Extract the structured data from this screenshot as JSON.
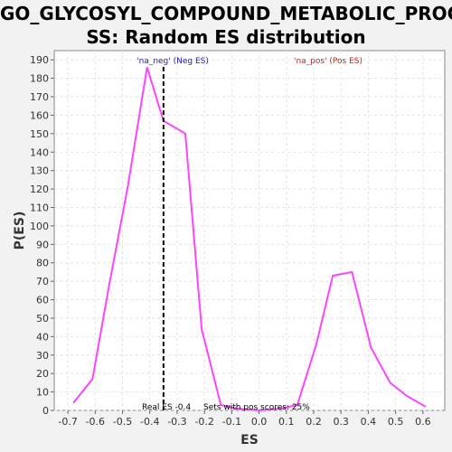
{
  "chart_data": {
    "type": "line",
    "title_line1": "GO_GLYCOSYL_COMPOUND_METABOLIC_PROCE",
    "title_line2": "SS: Random ES distribution",
    "xlabel": "ES",
    "ylabel": "P(ES)",
    "xlim": [
      -0.75,
      0.68
    ],
    "ylim": [
      0,
      195
    ],
    "xticks": [
      -0.7,
      -0.6,
      -0.5,
      -0.4,
      -0.3,
      -0.2,
      -0.1,
      0.0,
      0.1,
      0.2,
      0.3,
      0.4,
      0.5,
      0.6
    ],
    "xtick_labels": [
      "-0.7",
      "-0.6",
      "-0.5",
      "-0.4",
      "-0.3",
      "-0.2",
      "-0.1",
      "0.0",
      "0.1",
      "0.2",
      "0.3",
      "0.4",
      "0.5",
      "0.6"
    ],
    "yticks": [
      0,
      10,
      20,
      30,
      40,
      50,
      60,
      70,
      80,
      90,
      100,
      110,
      120,
      130,
      140,
      150,
      160,
      170,
      180,
      190
    ],
    "grid": true,
    "series": [
      {
        "color": "#ff44ff",
        "x": [
          -0.68,
          -0.61,
          -0.55,
          -0.48,
          -0.41,
          -0.35,
          -0.27,
          -0.21,
          -0.14,
          -0.08,
          0.0,
          0.08,
          0.14,
          0.21,
          0.27,
          0.34,
          0.41,
          0.48,
          0.54,
          0.61
        ],
        "y": [
          4,
          17,
          67,
          122,
          186,
          157,
          150,
          44,
          3,
          1,
          0,
          1,
          3,
          36,
          73,
          75,
          34,
          15,
          8,
          2
        ]
      }
    ],
    "real_es": -0.35,
    "annotations": {
      "neg_label": "'na_neg' (Neg ES)",
      "neg_color": "#2020cc",
      "pos_label": "'na_pos' (Pos ES)",
      "pos_color": "#cc2020",
      "real_es_label": "Real ES -0.4",
      "sets_label": "Sets with pos scores: 25%"
    }
  }
}
